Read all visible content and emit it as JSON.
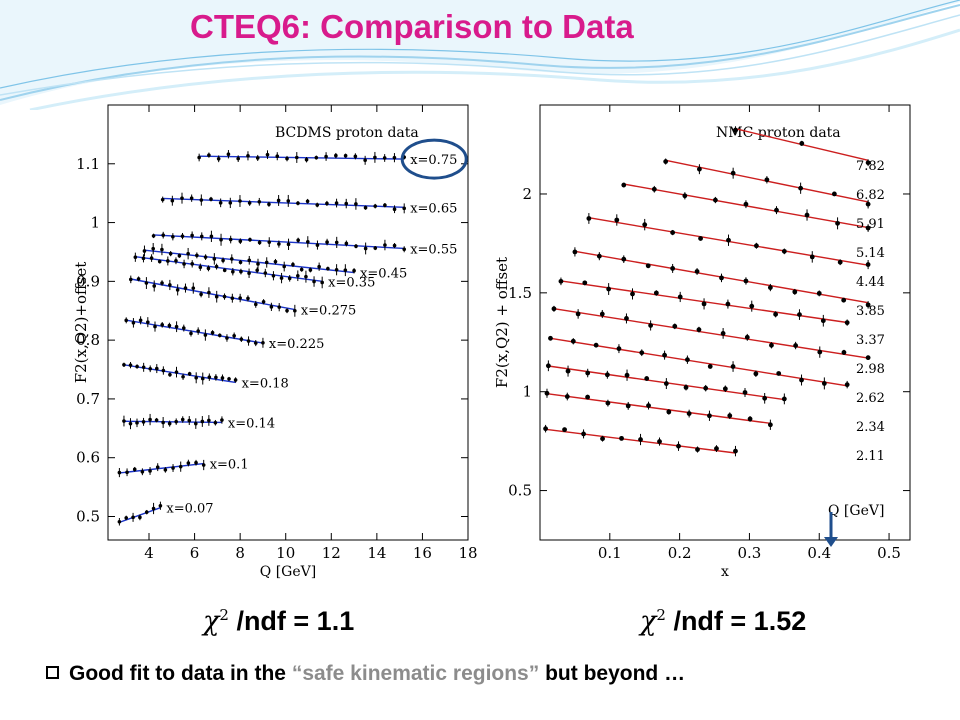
{
  "slide": {
    "title": "CTEQ6: Comparison to Data",
    "chi_left_value": "/ndf = 1.1",
    "chi_right_value": "/ndf = 1.52",
    "chi_symbol": "χ",
    "chi_exponent": "2",
    "bullet": {
      "prefix": "Good fit to data in the ",
      "highlight": "“safe kinematic regions”",
      "suffix": " but beyond …"
    },
    "colors": {
      "title": "#d81b8c",
      "highlight": "#8c8c8c",
      "waves": "#7fc4e8",
      "circle": "#1f4e8c",
      "arrow": "#1f4e8c"
    }
  },
  "chart_data": [
    {
      "type": "scatter",
      "title": "BCDMS proton data",
      "xlabel": "Q [GeV]",
      "ylabel": "F2(x,Q2)+offset",
      "xlim": [
        2.2,
        18
      ],
      "ylim": [
        0.46,
        1.2
      ],
      "xticks": [
        4,
        6,
        8,
        10,
        12,
        14,
        16,
        18
      ],
      "yticks": [
        0.5,
        0.6,
        0.7,
        0.8,
        0.9,
        1.0,
        1.1
      ],
      "ytick_labels": [
        "0.5",
        "0.6",
        "0.7",
        "0.8",
        "0.9",
        "1",
        "1.1"
      ],
      "fit_color": "#1a33c8",
      "series": [
        {
          "name": "x=0.75",
          "range": [
            6.2,
            15.2
          ],
          "y_start": 1.113,
          "y_end": 1.108,
          "n": 22
        },
        {
          "name": "x=0.65",
          "range": [
            4.6,
            15.2
          ],
          "y_start": 1.041,
          "y_end": 1.026,
          "n": 26
        },
        {
          "name": "x=0.55",
          "range": [
            4.2,
            15.2
          ],
          "y_start": 0.979,
          "y_end": 0.956,
          "n": 27
        },
        {
          "name": "x=0.45",
          "range": [
            3.8,
            13.0
          ],
          "y_start": 0.953,
          "y_end": 0.915,
          "n": 25
        },
        {
          "name": "x=0.35",
          "range": [
            3.4,
            11.6
          ],
          "y_start": 0.942,
          "y_end": 0.9,
          "n": 24
        },
        {
          "name": "x=0.275",
          "range": [
            3.2,
            10.4
          ],
          "y_start": 0.904,
          "y_end": 0.852,
          "n": 22
        },
        {
          "name": "x=0.225",
          "range": [
            3.0,
            9.0
          ],
          "y_start": 0.834,
          "y_end": 0.795,
          "n": 20
        },
        {
          "name": "x=0.18",
          "range": [
            2.9,
            7.8
          ],
          "y_start": 0.758,
          "y_end": 0.728,
          "n": 18
        },
        {
          "name": "x=0.14",
          "range": [
            2.9,
            7.2
          ],
          "y_start": 0.662,
          "y_end": 0.66,
          "n": 16
        },
        {
          "name": "x=0.1",
          "range": [
            2.7,
            6.4
          ],
          "y_start": 0.574,
          "y_end": 0.59,
          "n": 12
        },
        {
          "name": "x=0.07",
          "range": [
            2.7,
            4.5
          ],
          "y_start": 0.49,
          "y_end": 0.515,
          "n": 7
        }
      ]
    },
    {
      "type": "scatter",
      "title": "NMC proton  data",
      "xlabel": "x",
      "ylabel": "F2(x,Q2) + offset",
      "xlim": [
        0,
        0.53
      ],
      "ylim": [
        0.25,
        2.45
      ],
      "xticks": [
        0.1,
        0.2,
        0.3,
        0.4,
        0.5
      ],
      "yticks": [
        0.5,
        1.0,
        1.5,
        2.0
      ],
      "ytick_labels": [
        "0.5",
        "1",
        "1.5",
        "2"
      ],
      "legend_title": "Q [GeV]",
      "fit_color": "#cc1f1f",
      "series": [
        {
          "name": "7.82",
          "range": [
            0.28,
            0.47
          ],
          "y_start": 2.33,
          "y_end": 2.17,
          "n": 3
        },
        {
          "name": "6.82",
          "range": [
            0.18,
            0.47
          ],
          "y_start": 2.17,
          "y_end": 1.96,
          "n": 7
        },
        {
          "name": "5.91",
          "range": [
            0.12,
            0.47
          ],
          "y_start": 2.05,
          "y_end": 1.83,
          "n": 9
        },
        {
          "name": "5.14",
          "range": [
            0.07,
            0.47
          ],
          "y_start": 1.88,
          "y_end": 1.64,
          "n": 11
        },
        {
          "name": "4.44",
          "range": [
            0.05,
            0.47
          ],
          "y_start": 1.71,
          "y_end": 1.45,
          "n": 13
        },
        {
          "name": "3.85",
          "range": [
            0.03,
            0.44
          ],
          "y_start": 1.56,
          "y_end": 1.35,
          "n": 13
        },
        {
          "name": "3.37",
          "range": [
            0.02,
            0.47
          ],
          "y_start": 1.42,
          "y_end": 1.17,
          "n": 14
        },
        {
          "name": "2.98",
          "range": [
            0.015,
            0.44
          ],
          "y_start": 1.27,
          "y_end": 1.03,
          "n": 14
        },
        {
          "name": "2.62",
          "range": [
            0.012,
            0.35
          ],
          "y_start": 1.13,
          "y_end": 0.96,
          "n": 13
        },
        {
          "name": "2.34",
          "range": [
            0.01,
            0.33
          ],
          "y_start": 0.99,
          "y_end": 0.84,
          "n": 12
        },
        {
          "name": "2.11",
          "range": [
            0.008,
            0.28
          ],
          "y_start": 0.81,
          "y_end": 0.69,
          "n": 11
        }
      ]
    },
    {
      "type": "scatter",
      "title": "",
      "xlabel": "",
      "ylabel": "",
      "series": []
    }
  ]
}
